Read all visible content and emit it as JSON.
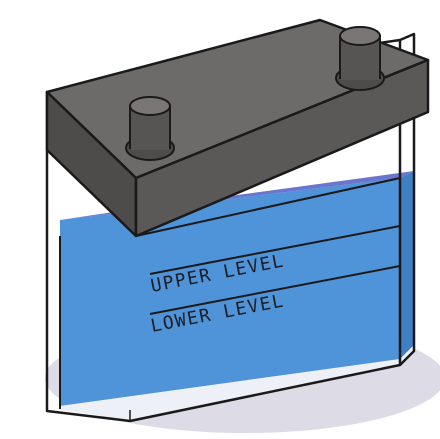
{
  "labels": {
    "upper": "UPPER LEVEL",
    "lower": "LOWER LEVEL"
  },
  "colors": {
    "lid_top": "#6d6a6a",
    "lid_front": "#5b5858",
    "lid_side": "#4e4b4b",
    "terminal": "#575454",
    "terminal_top": "#7a7676",
    "electrolyte_front": "#4f93d9",
    "electrolyte_side": "#3f7fc4",
    "electrolyte_top": "#5a66c8",
    "shadow": "#dcdbe6",
    "outline": "#1a1a1a"
  },
  "icons": {
    "battery": "car-battery-icon"
  }
}
